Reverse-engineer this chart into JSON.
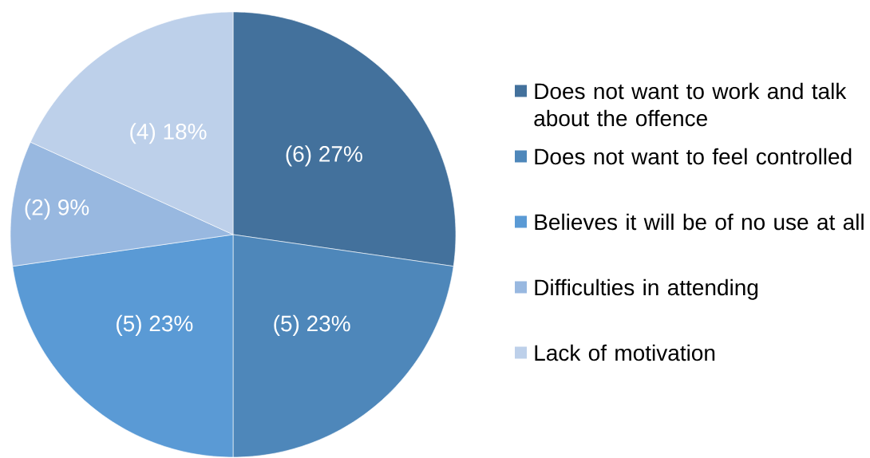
{
  "chart_data": {
    "type": "pie",
    "categories": [
      "Does not want to work and talk about the offence",
      "Does not want to feel controlled",
      "Believes it will be of no use at all",
      "Difficulties in attending",
      "Lack of motivation"
    ],
    "values": [
      6,
      5,
      5,
      2,
      4
    ],
    "colors": [
      "#43719c",
      "#4e87ba",
      "#5a9ad5",
      "#98b8e0",
      "#bdd0ea"
    ],
    "value_labels": [
      "(6) 27%",
      "(5) 23%",
      "(5) 23%",
      "(2) 9%",
      "(4) 18%"
    ],
    "legend": "right"
  }
}
